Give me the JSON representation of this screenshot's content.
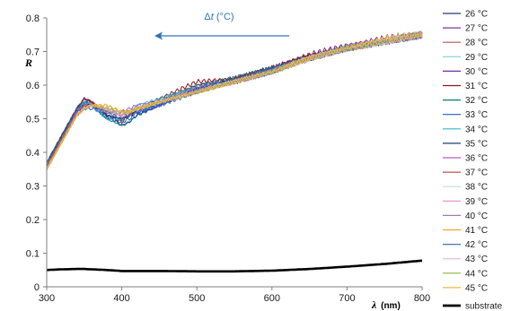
{
  "chart_data": {
    "type": "line",
    "ylabel": "R",
    "xlabel": "λ",
    "xlabel_unit": "(nm)",
    "xlim": [
      300,
      800
    ],
    "ylim": [
      0,
      0.8
    ],
    "x_ticks": [
      "300",
      "400",
      "500",
      "600",
      "700",
      "800"
    ],
    "y_ticks": [
      "0",
      "0.1",
      "0.2",
      "0.3",
      "0.4",
      "0.5",
      "0.6",
      "0.7",
      "0.8"
    ],
    "grid": false,
    "legend_position": "right",
    "annotation": {
      "prefix": "Δ",
      "variable": "t",
      "unit": " (°C)",
      "arrow_direction": "left",
      "color": "#2E75B6"
    },
    "x": [
      300,
      320,
      340,
      350,
      360,
      380,
      400,
      410,
      420,
      450,
      500,
      550,
      600,
      650,
      700,
      750,
      800
    ],
    "series": [
      {
        "name": "26 °C",
        "color": "#1F3A7A",
        "values": [
          0.36,
          0.45,
          0.53,
          0.56,
          0.55,
          0.51,
          0.48,
          0.49,
          0.51,
          0.54,
          0.59,
          0.62,
          0.65,
          0.69,
          0.71,
          0.73,
          0.75
        ]
      },
      {
        "name": "27 °C",
        "color": "#7A3A8C",
        "values": [
          0.37,
          0.45,
          0.53,
          0.56,
          0.55,
          0.51,
          0.5,
          0.51,
          0.53,
          0.55,
          0.6,
          0.62,
          0.65,
          0.69,
          0.72,
          0.74,
          0.75
        ]
      },
      {
        "name": "28 °C",
        "color": "#C0504D",
        "values": [
          0.36,
          0.44,
          0.52,
          0.55,
          0.55,
          0.52,
          0.51,
          0.52,
          0.53,
          0.55,
          0.59,
          0.61,
          0.64,
          0.69,
          0.71,
          0.73,
          0.75
        ]
      },
      {
        "name": "29 °C",
        "color": "#7FD1C9",
        "values": [
          0.36,
          0.44,
          0.52,
          0.54,
          0.54,
          0.52,
          0.51,
          0.52,
          0.53,
          0.55,
          0.58,
          0.61,
          0.64,
          0.68,
          0.71,
          0.73,
          0.75
        ]
      },
      {
        "name": "30 °C",
        "color": "#7030A0",
        "values": [
          0.36,
          0.45,
          0.52,
          0.55,
          0.54,
          0.51,
          0.5,
          0.51,
          0.52,
          0.54,
          0.59,
          0.61,
          0.65,
          0.68,
          0.71,
          0.73,
          0.75
        ]
      },
      {
        "name": "31 °C",
        "color": "#8B1A1A",
        "values": [
          0.37,
          0.45,
          0.53,
          0.56,
          0.55,
          0.51,
          0.49,
          0.51,
          0.53,
          0.56,
          0.61,
          0.62,
          0.65,
          0.69,
          0.71,
          0.73,
          0.75
        ]
      },
      {
        "name": "32 °C",
        "color": "#008080",
        "values": [
          0.37,
          0.45,
          0.53,
          0.55,
          0.54,
          0.5,
          0.48,
          0.49,
          0.51,
          0.55,
          0.6,
          0.62,
          0.65,
          0.68,
          0.71,
          0.73,
          0.75
        ]
      },
      {
        "name": "33 °C",
        "color": "#1F5FBF",
        "values": [
          0.36,
          0.44,
          0.53,
          0.55,
          0.54,
          0.5,
          0.49,
          0.5,
          0.51,
          0.54,
          0.59,
          0.61,
          0.65,
          0.68,
          0.71,
          0.73,
          0.75
        ]
      },
      {
        "name": "34 °C",
        "color": "#2FB8D6",
        "values": [
          0.36,
          0.44,
          0.52,
          0.55,
          0.54,
          0.5,
          0.5,
          0.52,
          0.54,
          0.56,
          0.59,
          0.61,
          0.64,
          0.68,
          0.71,
          0.73,
          0.75
        ]
      },
      {
        "name": "35 °C",
        "color": "#1F3A7A",
        "values": [
          0.36,
          0.44,
          0.52,
          0.54,
          0.54,
          0.51,
          0.5,
          0.51,
          0.52,
          0.54,
          0.59,
          0.61,
          0.64,
          0.68,
          0.71,
          0.73,
          0.75
        ]
      },
      {
        "name": "36 °C",
        "color": "#B05FC0",
        "values": [
          0.36,
          0.44,
          0.52,
          0.54,
          0.54,
          0.52,
          0.52,
          0.53,
          0.54,
          0.55,
          0.59,
          0.61,
          0.64,
          0.68,
          0.71,
          0.73,
          0.75
        ]
      },
      {
        "name": "37 °C",
        "color": "#C0504D",
        "values": [
          0.36,
          0.44,
          0.52,
          0.54,
          0.54,
          0.52,
          0.51,
          0.52,
          0.53,
          0.55,
          0.58,
          0.61,
          0.64,
          0.68,
          0.71,
          0.73,
          0.75
        ]
      },
      {
        "name": "38 °C",
        "color": "#B8E0D8",
        "values": [
          0.35,
          0.43,
          0.51,
          0.53,
          0.53,
          0.52,
          0.51,
          0.52,
          0.53,
          0.55,
          0.58,
          0.61,
          0.64,
          0.68,
          0.71,
          0.73,
          0.75
        ]
      },
      {
        "name": "39 °C",
        "color": "#E88CC4",
        "values": [
          0.35,
          0.43,
          0.51,
          0.53,
          0.54,
          0.53,
          0.51,
          0.52,
          0.53,
          0.55,
          0.58,
          0.61,
          0.64,
          0.68,
          0.71,
          0.73,
          0.75
        ]
      },
      {
        "name": "40 °C",
        "color": "#9E7BB5",
        "values": [
          0.35,
          0.43,
          0.51,
          0.53,
          0.54,
          0.53,
          0.52,
          0.52,
          0.53,
          0.55,
          0.58,
          0.61,
          0.64,
          0.68,
          0.71,
          0.73,
          0.75
        ]
      },
      {
        "name": "41 °C",
        "color": "#F5A623",
        "values": [
          0.35,
          0.43,
          0.51,
          0.53,
          0.54,
          0.54,
          0.52,
          0.52,
          0.53,
          0.55,
          0.58,
          0.61,
          0.64,
          0.68,
          0.71,
          0.73,
          0.75
        ]
      },
      {
        "name": "42 °C",
        "color": "#4472C4",
        "values": [
          0.35,
          0.43,
          0.51,
          0.53,
          0.53,
          0.52,
          0.5,
          0.51,
          0.52,
          0.54,
          0.58,
          0.61,
          0.64,
          0.68,
          0.71,
          0.73,
          0.75
        ]
      },
      {
        "name": "43 °C",
        "color": "#E6B8D0",
        "values": [
          0.35,
          0.43,
          0.51,
          0.53,
          0.54,
          0.53,
          0.52,
          0.52,
          0.53,
          0.55,
          0.58,
          0.61,
          0.64,
          0.68,
          0.71,
          0.73,
          0.75
        ]
      },
      {
        "name": "44 °C",
        "color": "#8DB63C",
        "values": [
          0.35,
          0.43,
          0.51,
          0.53,
          0.54,
          0.53,
          0.52,
          0.52,
          0.53,
          0.55,
          0.58,
          0.61,
          0.64,
          0.68,
          0.71,
          0.73,
          0.75
        ]
      },
      {
        "name": "45 °C",
        "color": "#F5B43C",
        "values": [
          0.35,
          0.43,
          0.51,
          0.53,
          0.54,
          0.54,
          0.52,
          0.52,
          0.53,
          0.55,
          0.58,
          0.61,
          0.64,
          0.68,
          0.71,
          0.74,
          0.75
        ]
      },
      {
        "name": "substrate",
        "color": "#000000",
        "values": [
          0.05,
          0.052,
          0.053,
          0.053,
          0.052,
          0.05,
          0.047,
          0.047,
          0.047,
          0.047,
          0.046,
          0.046,
          0.048,
          0.053,
          0.06,
          0.068,
          0.078
        ]
      }
    ]
  }
}
